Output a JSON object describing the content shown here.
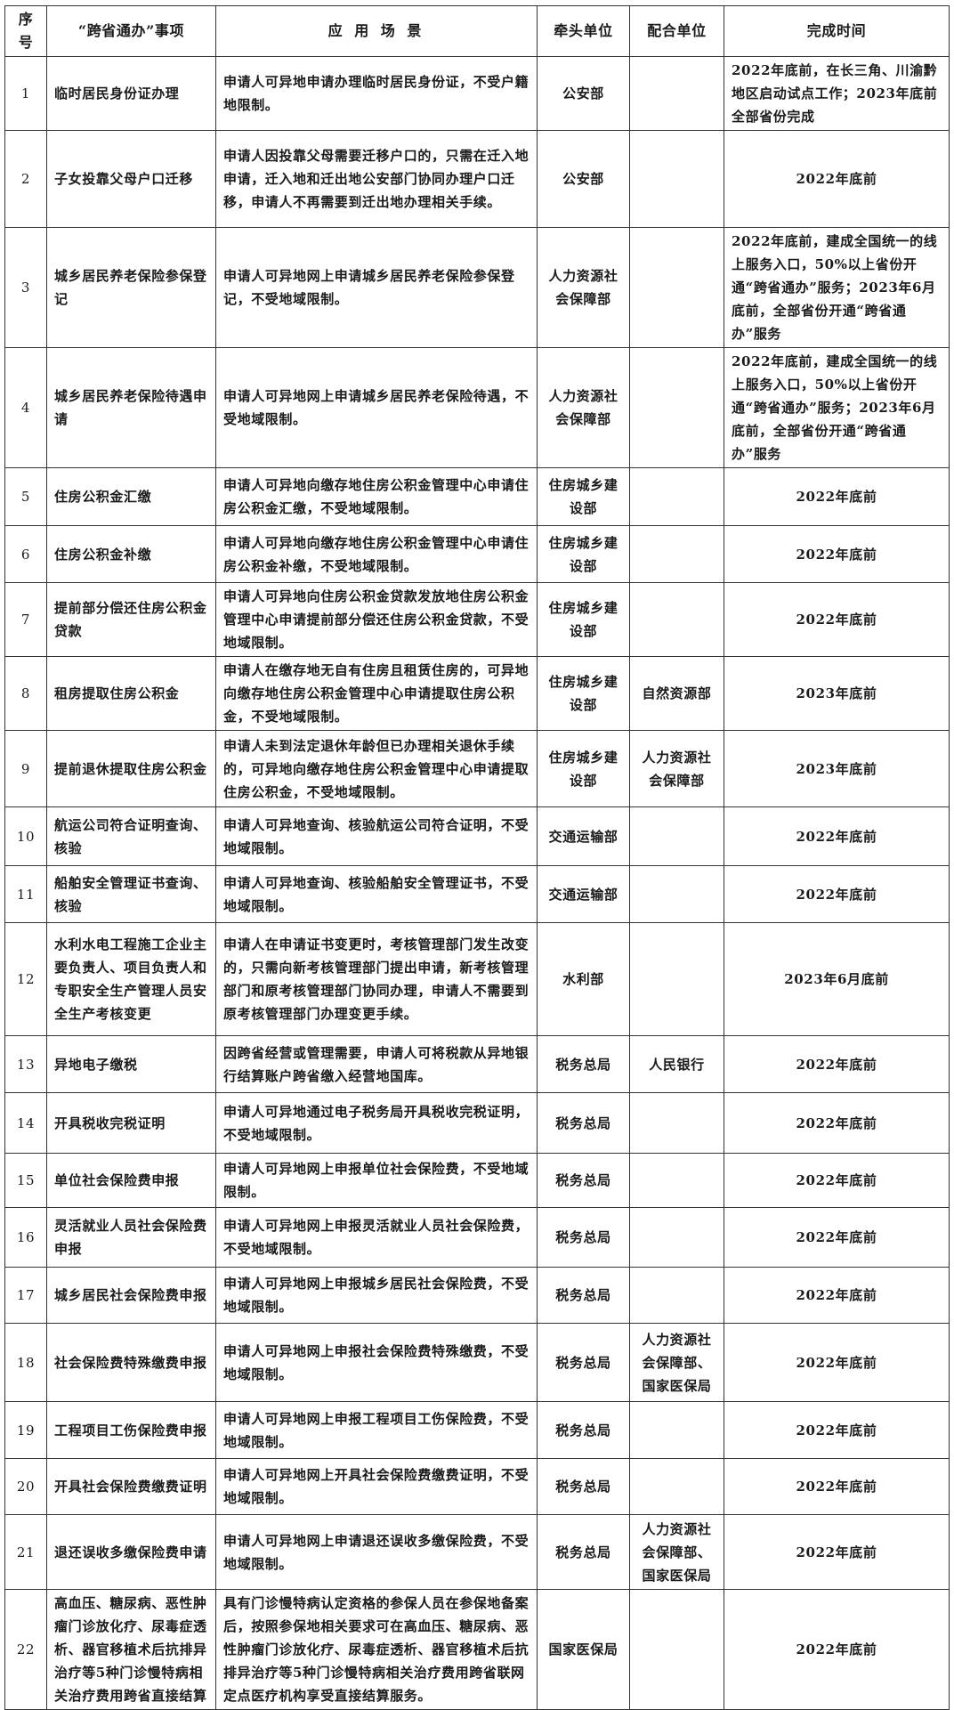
{
  "header": [
    "序号",
    "“跨省通办”事项",
    "应 用 场 景",
    "牵头单位",
    "配合单位",
    "完成时间"
  ],
  "rows": [
    {
      "no": "1",
      "item": "临时居民身份证办理",
      "scene": "申请人可异地申请办理临时居民身份证，不受户籍地限制。",
      "lead": "公安部",
      "coop": "",
      "time": "2022年底前，在长三角、川渝黔地区启动试点工作；2023年底前全部省份完成"
    },
    {
      "no": "2",
      "item": "子女投靠父母户口迁移",
      "scene": "申请人因投靠父母需要迁移户口的，只需在迁入地申请，迁入地和迁出地公安部门协同办理户口迁移，申请人不再需要到迁出地办理相关手续。",
      "lead": "公安部",
      "coop": "",
      "time": "2022年底前"
    },
    {
      "no": "3",
      "item": "城乡居民养老保险参保登记",
      "scene": "申请人可异地网上申请城乡居民养老保险参保登记，不受地域限制。",
      "lead": "人力资源社会保障部",
      "coop": "",
      "time": "2022年底前，建成全国统一的线上服务入口，50%以上省份开通“跨省通办”服务；2023年6月底前，全部省份开通“跨省通办”服务"
    },
    {
      "no": "4",
      "item": "城乡居民养老保险待遇申请",
      "scene": "申请人可异地网上申请城乡居民养老保险待遇，不受地域限制。",
      "lead": "人力资源社会保障部",
      "coop": "",
      "time": "2022年底前，建成全国统一的线上服务入口，50%以上省份开通“跨省通办”服务；2023年6月底前，全部省份开通“跨省通办”服务"
    },
    {
      "no": "5",
      "item": "住房公积金汇缴",
      "scene": "申请人可异地向缴存地住房公积金管理中心申请住房公积金汇缴，不受地域限制。",
      "lead": "住房城乡建设部",
      "coop": "",
      "time": "2022年底前"
    },
    {
      "no": "6",
      "item": "住房公积金补缴",
      "scene": "申请人可异地向缴存地住房公积金管理中心申请住房公积金补缴，不受地域限制。",
      "lead": "住房城乡建设部",
      "coop": "",
      "time": "2022年底前"
    },
    {
      "no": "7",
      "item": "提前部分偿还住房公积金贷款",
      "scene": "申请人可异地向住房公积金贷款发放地住房公积金管理中心申请提前部分偿还住房公积金贷款，不受地域限制。",
      "lead": "住房城乡建设部",
      "coop": "",
      "time": "2022年底前"
    },
    {
      "no": "8",
      "item": "租房提取住房公积金",
      "scene": "申请人在缴存地无自有住房且租赁住房的，可异地向缴存地住房公积金管理中心申请提取住房公积金，不受地域限制。",
      "lead": "住房城乡建设部",
      "coop": "自然资源部",
      "time": "2023年底前"
    },
    {
      "no": "9",
      "item": "提前退休提取住房公积金",
      "scene": "申请人未到法定退休年龄但已办理相关退休手续的，可异地向缴存地住房公积金管理中心申请提取住房公积金，不受地域限制。",
      "lead": "住房城乡建设部",
      "coop": "人力资源社会保障部",
      "time": "2023年底前"
    },
    {
      "no": "10",
      "item": "航运公司符合证明查询、核验",
      "scene": "申请人可异地查询、核验航运公司符合证明，不受地域限制。",
      "lead": "交通运输部",
      "coop": "",
      "time": "2022年底前"
    },
    {
      "no": "11",
      "item": "船舶安全管理证书查询、核验",
      "scene": "申请人可异地查询、核验船舶安全管理证书，不受地域限制。",
      "lead": "交通运输部",
      "coop": "",
      "time": "2022年底前"
    },
    {
      "no": "12",
      "item": "水利水电工程施工企业主要负责人、项目负责人和专职安全生产管理人员安全生产考核变更",
      "scene": "申请人在申请证书变更时，考核管理部门发生改变的，只需向新考核管理部门提出申请，新考核管理部门和原考核管理部门协同办理，申请人不需要到原考核管理部门办理变更手续。",
      "lead": "水利部",
      "coop": "",
      "time": "2023年6月底前"
    },
    {
      "no": "13",
      "item": "异地电子缴税",
      "scene": "因跨省经营或管理需要，申请人可将税款从异地银行结算账户跨省缴入经营地国库。",
      "lead": "税务总局",
      "coop": "人民银行",
      "time": "2022年底前"
    },
    {
      "no": "14",
      "item": "开具税收完税证明",
      "scene": "申请人可异地通过电子税务局开具税收完税证明，不受地域限制。",
      "lead": "税务总局",
      "coop": "",
      "time": "2022年底前"
    },
    {
      "no": "15",
      "item": "单位社会保险费申报",
      "scene": "申请人可异地网上申报单位社会保险费，不受地域限制。",
      "lead": "税务总局",
      "coop": "",
      "time": "2022年底前"
    },
    {
      "no": "16",
      "item": "灵活就业人员社会保险费申报",
      "scene": "申请人可异地网上申报灵活就业人员社会保险费，不受地域限制。",
      "lead": "税务总局",
      "coop": "",
      "time": "2022年底前"
    },
    {
      "no": "17",
      "item": "城乡居民社会保险费申报",
      "scene": "申请人可异地网上申报城乡居民社会保险费，不受地域限制。",
      "lead": "税务总局",
      "coop": "",
      "time": "2022年底前"
    },
    {
      "no": "18",
      "item": "社会保险费特殊缴费申报",
      "scene": "申请人可异地网上申报社会保险费特殊缴费，不受地域限制。",
      "lead": "税务总局",
      "coop": "人力资源社会保障部、国家医保局",
      "time": "2022年底前"
    },
    {
      "no": "19",
      "item": "工程项目工伤保险费申报",
      "scene": "申请人可异地网上申报工程项目工伤保险费，不受地域限制。",
      "lead": "税务总局",
      "coop": "",
      "time": "2022年底前"
    },
    {
      "no": "20",
      "item": "开具社会保险费缴费证明",
      "scene": "申请人可异地网上开具社会保险费缴费证明，不受地域限制。",
      "lead": "税务总局",
      "coop": "",
      "time": "2022年底前"
    },
    {
      "no": "21",
      "item": "退还误收多缴保险费申请",
      "scene": "申请人可异地网上申请退还误收多缴保险费，不受地域限制。",
      "lead": "税务总局",
      "coop": "人力资源社会保障部、国家医保局",
      "time": "2022年底前"
    },
    {
      "no": "22",
      "item": "高血压、糖尿病、恶性肿瘤门诊放化疗、尿毒症透析、器官移植术后抗排异治疗等5种门诊慢特病相关治疗费用跨省直接结算",
      "scene": "具有门诊慢特病认定资格的参保人员在参保地备案后，按照参保地相关要求可在高血压、糖尿病、恶性肿瘤门诊放化疗、尿毒症透析、器官移植术后抗排异治疗等5种门诊慢特病相关治疗费用跨省联网定点医疗机构享受直接结算服务。",
      "lead": "国家医保局",
      "coop": "",
      "time": "2022年底前"
    }
  ]
}
